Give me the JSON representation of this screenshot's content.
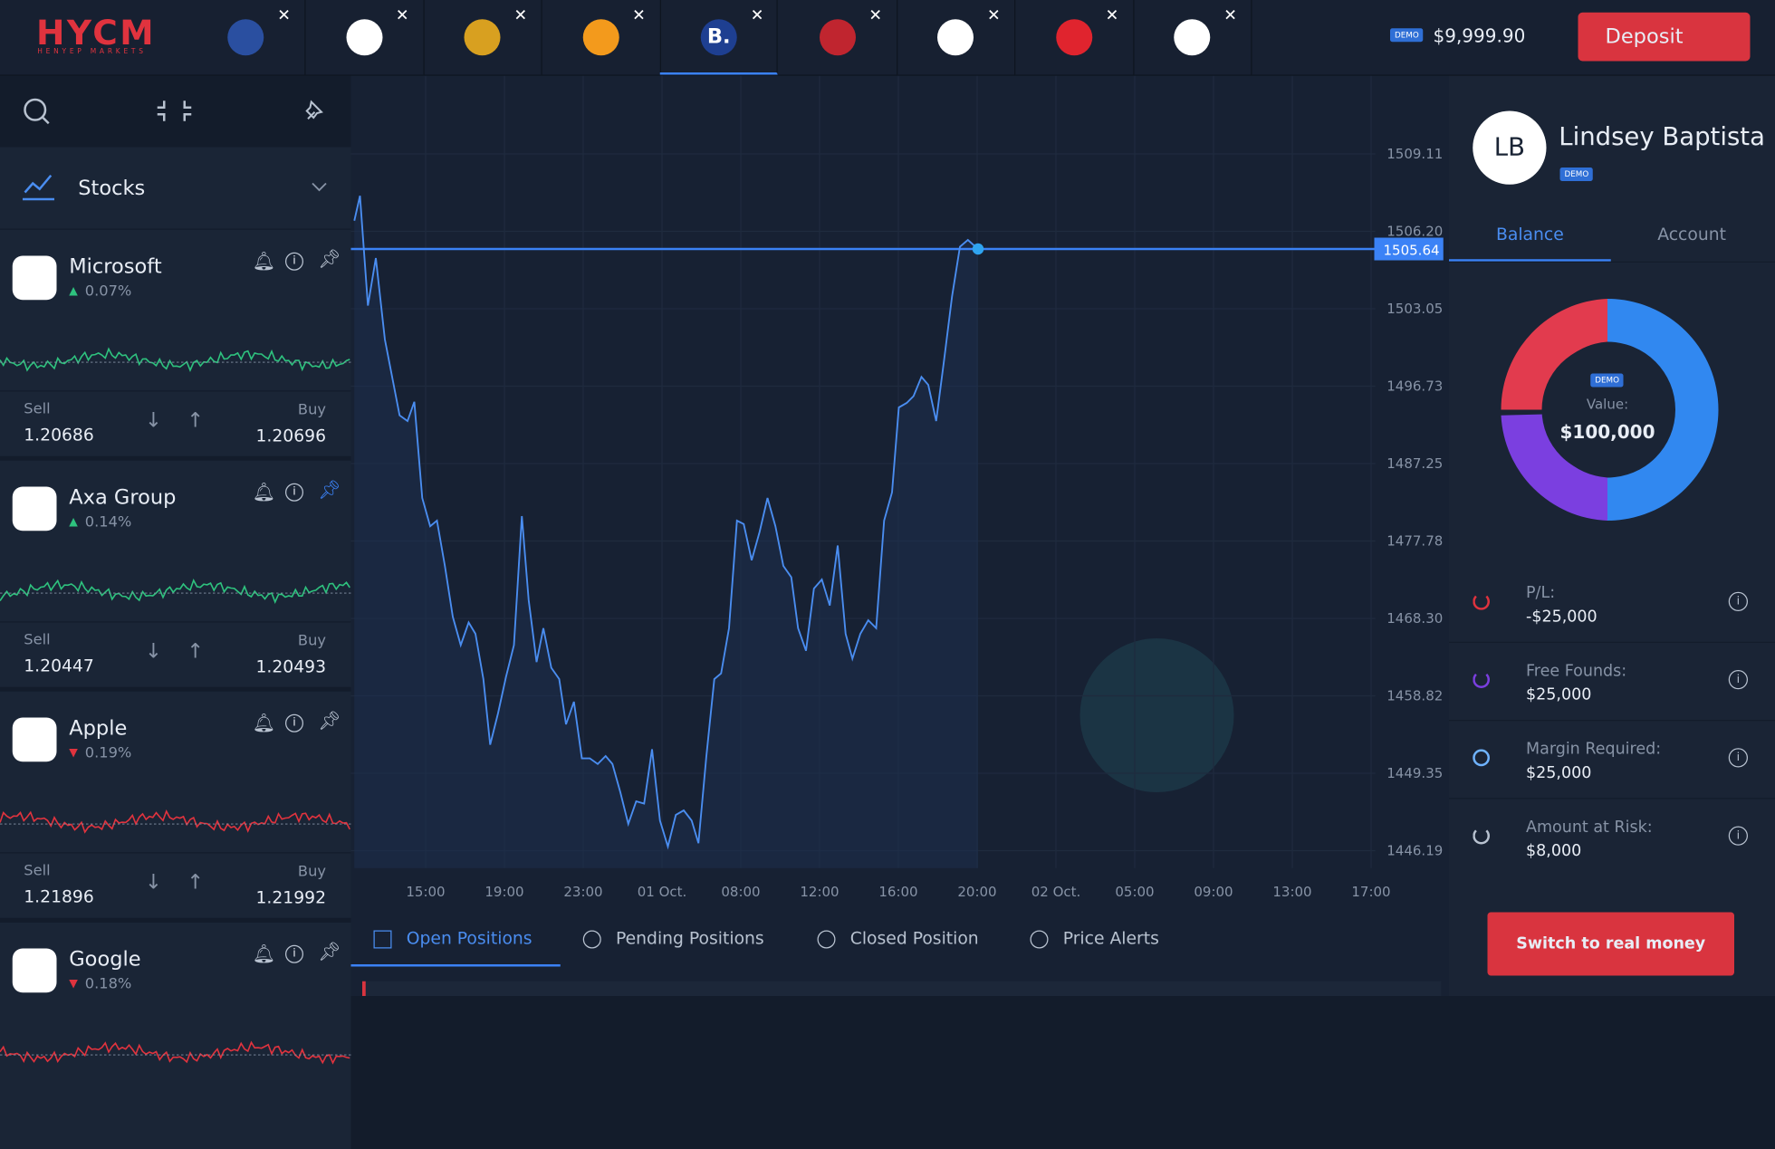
{
  "header": {
    "logo": "HYCM",
    "logo_sub": "HENYEP MARKETS",
    "active_tab_letter": "B.",
    "demo_badge": "DEMO",
    "balance": "$9,999.90",
    "deposit": "Deposit"
  },
  "sidebar": {
    "category": "Stocks",
    "instruments": [
      {
        "name": "Microsoft",
        "change": "0.07%",
        "dir": "up",
        "sell_label": "Sell",
        "sell": "1.20686",
        "buy_label": "Buy",
        "buy": "1.20696"
      },
      {
        "name": "Axa Group",
        "change": "0.14%",
        "dir": "up",
        "sell_label": "Sell",
        "sell": "1.20447",
        "buy_label": "Buy",
        "buy": "1.20493"
      },
      {
        "name": "Apple",
        "change": "0.19%",
        "dir": "down",
        "sell_label": "Sell",
        "sell": "1.21896",
        "buy_label": "Buy",
        "buy": "1.21992"
      },
      {
        "name": "Google",
        "change": "0.18%",
        "dir": "down"
      }
    ]
  },
  "chart": {
    "y_labels": [
      "1509.11",
      "1506.20",
      "1503.05",
      "1496.73",
      "1487.25",
      "1477.78",
      "1468.30",
      "1458.82",
      "1449.35",
      "1446.19"
    ],
    "current": "1505.64",
    "x_labels": [
      "15:00",
      "19:00",
      "23:00",
      "01 Oct.",
      "08:00",
      "12:00",
      "16:00",
      "20:00",
      "02 Oct.",
      "05:00",
      "09:00",
      "13:00",
      "17:00"
    ]
  },
  "bottom_tabs": [
    "Open Positions",
    "Pending Positions",
    "Closed Position",
    "Price Alerts"
  ],
  "profile": {
    "initials": "LB",
    "name": "Lindsey Baptista",
    "badge": "DEMO",
    "tabs": [
      "Balance",
      "Account"
    ],
    "donut": {
      "badge": "DEMO",
      "label": "Value:",
      "value": "$100,000"
    },
    "stats": [
      {
        "label": "P/L:",
        "value": "-$25,000"
      },
      {
        "label": "Free Founds:",
        "value": "$25,000"
      },
      {
        "label": "Margin Required:",
        "value": "$25,000"
      },
      {
        "label": "Amount at Risk:",
        "value": "$8,000"
      }
    ],
    "button": "Switch to real money"
  }
}
